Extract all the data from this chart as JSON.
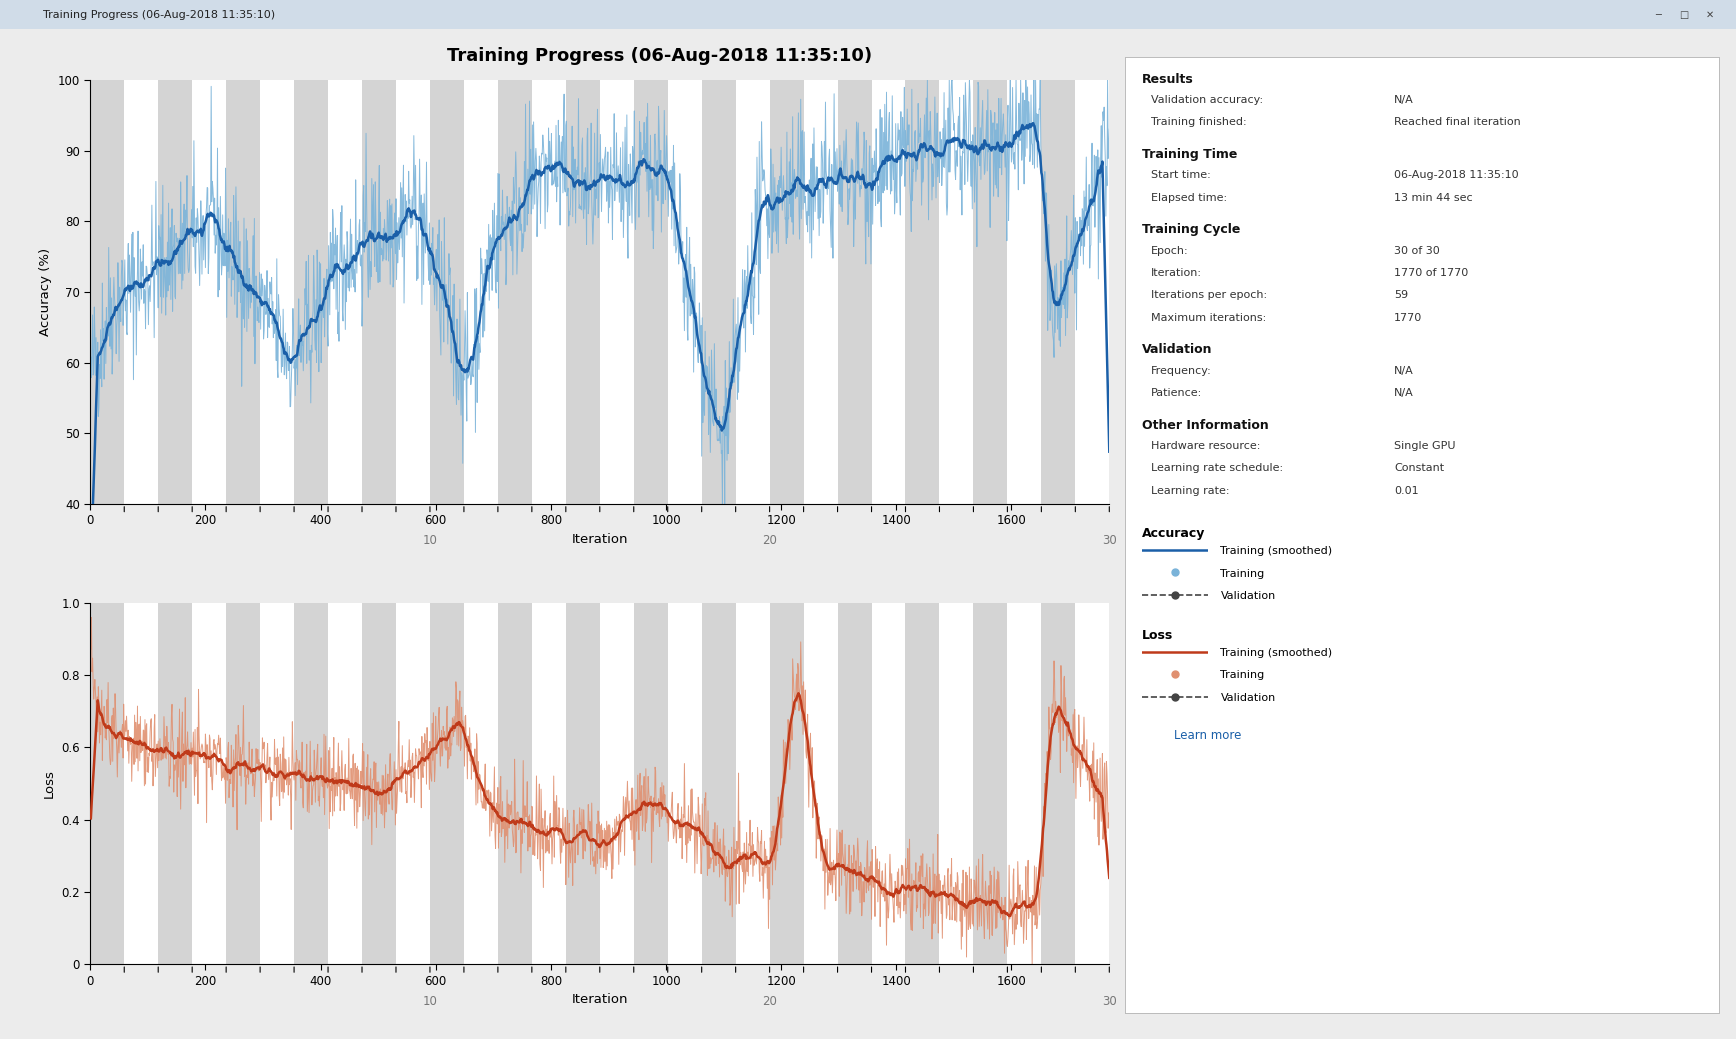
{
  "title": "Training Progress (06-Aug-2018 11:35:10)",
  "total_iterations": 1770,
  "epochs": 30,
  "iterations_per_epoch": 59,
  "acc_ylim": [
    40,
    100
  ],
  "acc_yticks": [
    40,
    50,
    60,
    70,
    80,
    90,
    100
  ],
  "loss_ylim": [
    0,
    1.0
  ],
  "loss_yticks": [
    0,
    0.2,
    0.4,
    0.6,
    0.8,
    1.0
  ],
  "xticks": [
    0,
    200,
    400,
    600,
    800,
    1000,
    1200,
    1400,
    1600
  ],
  "epoch_display": [
    10,
    20,
    30
  ],
  "bg_color": "#ececec",
  "plot_bg": "#ffffff",
  "stripe_color": "#d4d4d4",
  "acc_smooth_color": "#1a5fa8",
  "acc_raw_color": "#7ab3d9",
  "loss_smooth_color": "#bf3a1a",
  "loss_raw_color": "#e09070",
  "info_sections": [
    {
      "title": "Results",
      "items": [
        [
          "Validation accuracy:",
          "N/A"
        ],
        [
          "Training finished:",
          "Reached final iteration"
        ]
      ]
    },
    {
      "title": "Training Time",
      "items": [
        [
          "Start time:",
          "06-Aug-2018 11:35:10"
        ],
        [
          "Elapsed time:",
          "13 min 44 sec"
        ]
      ]
    },
    {
      "title": "Training Cycle",
      "items": [
        [
          "Epoch:",
          "30 of 30"
        ],
        [
          "Iteration:",
          "1770 of 1770"
        ],
        [
          "Iterations per epoch:",
          "59"
        ],
        [
          "Maximum iterations:",
          "1770"
        ]
      ]
    },
    {
      "title": "Validation",
      "items": [
        [
          "Frequency:",
          "N/A"
        ],
        [
          "Patience:",
          "N/A"
        ]
      ]
    },
    {
      "title": "Other Information",
      "items": [
        [
          "Hardware resource:",
          "Single GPU"
        ],
        [
          "Learning rate schedule:",
          "Constant"
        ],
        [
          "Learning rate:",
          "0.01"
        ]
      ]
    }
  ]
}
